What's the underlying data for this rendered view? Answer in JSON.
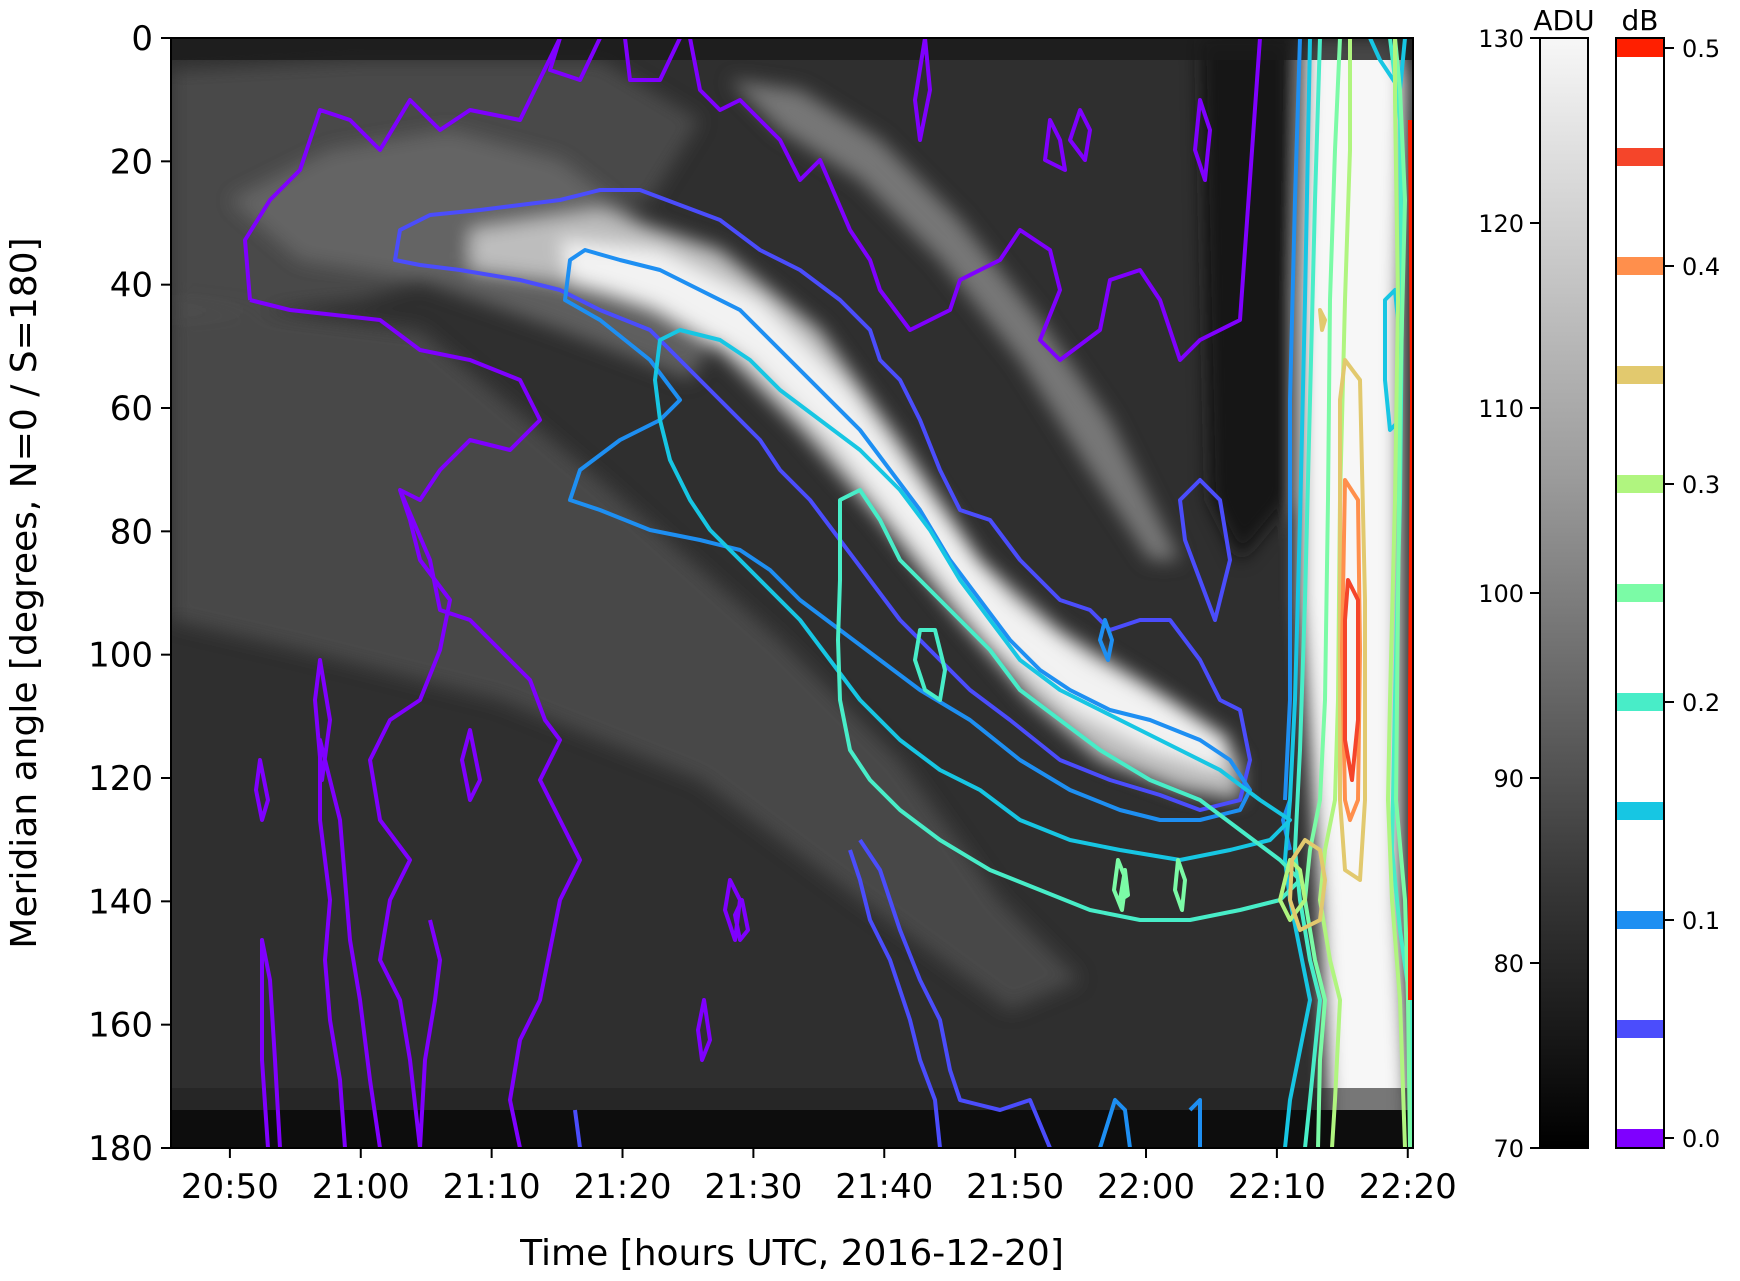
{
  "chart_data": {
    "type": "heatmap",
    "xlabel": "Time [hours UTC, 2016-12-20]",
    "ylabel": "Meridian angle [degrees, N=0 / S=180]",
    "x_tick_labels": [
      "20:50",
      "21:00",
      "21:10",
      "21:20",
      "21:30",
      "21:40",
      "21:50",
      "22:00",
      "22:10",
      "22:20"
    ],
    "x_ticks_minutes_after_2050": [
      0,
      10,
      20,
      30,
      40,
      50,
      60,
      70,
      80,
      90
    ],
    "xlim_minutes_after_2050": [
      -4.5,
      90.4
    ],
    "y_ticks": [
      0,
      20,
      40,
      60,
      80,
      100,
      120,
      140,
      160,
      180
    ],
    "ylim": [
      180,
      0
    ],
    "background": {
      "name": "ADU",
      "colormap": "gray",
      "range": [
        70,
        130
      ],
      "colorbar_ticks": [
        70,
        80,
        90,
        100,
        110,
        120,
        130
      ],
      "colorbar_label": "ADU"
    },
    "contours": {
      "name": "dB",
      "colorbar_label": "dB",
      "colorbar_ticks": [
        0.0,
        0.1,
        0.2,
        0.3,
        0.4,
        0.5
      ],
      "colorbar_tick_labels": [
        "0.0",
        "0.1",
        "0.2",
        "0.3",
        "0.4",
        "0.5"
      ],
      "levels": [
        {
          "value": 0.0,
          "color": "#7f00ff"
        },
        {
          "value": 0.05,
          "color": "#4b4dfc"
        },
        {
          "value": 0.1,
          "color": "#1e8ff2"
        },
        {
          "value": 0.15,
          "color": "#17c6e3"
        },
        {
          "value": 0.2,
          "color": "#48edc8"
        },
        {
          "value": 0.25,
          "color": "#7bfba6"
        },
        {
          "value": 0.3,
          "color": "#b0f57f"
        },
        {
          "value": 0.35,
          "color": "#e2c96e"
        },
        {
          "value": 0.4,
          "color": "#ff8f4c"
        },
        {
          "value": 0.45,
          "color": "#f5452a"
        },
        {
          "value": 0.5,
          "color": "#ff1f00"
        }
      ]
    }
  }
}
